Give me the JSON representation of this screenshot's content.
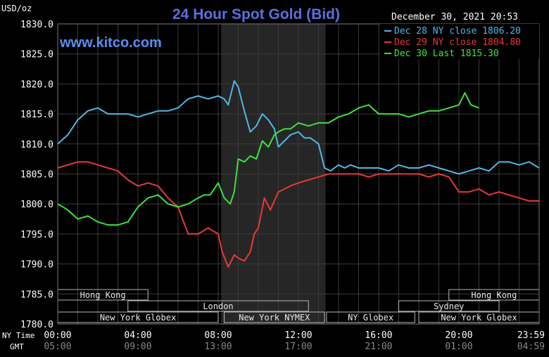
{
  "chart_data": {
    "type": "line",
    "title": "24 Hour Spot Gold (Bid)",
    "watermark": "www.kitco.com",
    "timestamp": "December 30, 2021 20:53",
    "ylabel": "USD/oz",
    "ylim": [
      1780,
      1830
    ],
    "yticks": [
      "1830.0",
      "1825.0",
      "1820.0",
      "1815.0",
      "1810.0",
      "1805.0",
      "1800.0",
      "1795.0",
      "1790.0",
      "1785.0",
      "1780.0"
    ],
    "xlim": [
      0,
      24
    ],
    "xticks_ny": [
      "00:00",
      "04:00",
      "08:00",
      "12:00",
      "16:00",
      "20:00",
      "23:59"
    ],
    "xticks_gmt": [
      "05:00",
      "09:00",
      "13:00",
      "17:00",
      "21:00",
      "01:00",
      "04:59"
    ],
    "xlabel_ny": "NY Time",
    "xlabel_gmt": "GMT",
    "grid": true,
    "legend_position": "top-right",
    "highlight_x": [
      8.15,
      13.35
    ],
    "sessions": [
      {
        "label": "Hong Kong",
        "start": 0,
        "end": 4.5,
        "row": 0
      },
      {
        "label": "Hong Kong",
        "start": 19.5,
        "end": 24,
        "row": 0
      },
      {
        "label": "London",
        "start": 3.5,
        "end": 12.5,
        "row": 1
      },
      {
        "label": "Sydney",
        "start": 17,
        "end": 22,
        "row": 1
      },
      {
        "label": "New York Globex",
        "start": 0,
        "end": 8.0,
        "row": 2
      },
      {
        "label": "New York NYMEX",
        "start": 8.3,
        "end": 13.3,
        "row": 2
      },
      {
        "label": "NY Globex",
        "start": 13.4,
        "end": 17.8,
        "row": 2
      },
      {
        "label": "New York Globex",
        "start": 18.0,
        "end": 24,
        "row": 2
      }
    ],
    "series": [
      {
        "name": "Dec 28 NY close 1806.20",
        "color": "#4fb8e6",
        "x": [
          0,
          0.5,
          1,
          1.5,
          2,
          2.5,
          3,
          3.5,
          4,
          4.5,
          5,
          5.5,
          6,
          6.5,
          7,
          7.5,
          8,
          8.3,
          8.5,
          8.8,
          9,
          9.3,
          9.6,
          9.9,
          10.2,
          10.5,
          10.8,
          11,
          11.3,
          11.6,
          12,
          12.3,
          12.6,
          13,
          13.3,
          13.6,
          14,
          14.3,
          14.6,
          15,
          15.5,
          16,
          16.5,
          17,
          17.5,
          18,
          18.5,
          19,
          19.5,
          20,
          20.5,
          21,
          21.5,
          22,
          22.5,
          23,
          23.5,
          24
        ],
        "values": [
          1810,
          1811.5,
          1814,
          1815.5,
          1816,
          1815,
          1815,
          1815,
          1814.5,
          1815,
          1815.5,
          1815.5,
          1816,
          1817.5,
          1818,
          1817.5,
          1818,
          1817.5,
          1816.5,
          1820.5,
          1819.5,
          1815.5,
          1812,
          1813,
          1815,
          1814,
          1812.5,
          1809.5,
          1810.5,
          1811.5,
          1812,
          1811,
          1811,
          1810,
          1806,
          1805.5,
          1806.5,
          1806,
          1806.5,
          1806,
          1806,
          1806,
          1805.5,
          1806.5,
          1806,
          1806,
          1806.5,
          1806,
          1805.5,
          1805,
          1805.5,
          1806,
          1805.5,
          1807,
          1807,
          1806.5,
          1807,
          1806
        ]
      },
      {
        "name": "Dec 29 NY close 1804.80",
        "color": "#e83838",
        "x": [
          0,
          0.5,
          1,
          1.5,
          2,
          2.5,
          3,
          3.5,
          4,
          4.5,
          5,
          5.5,
          6,
          6.5,
          7,
          7.5,
          8,
          8.2,
          8.5,
          8.8,
          9,
          9.3,
          9.6,
          9.8,
          10,
          10.3,
          10.6,
          11,
          11.3,
          11.6,
          12,
          12.5,
          13,
          13.5,
          14,
          14.5,
          15,
          15.5,
          16,
          16.5,
          17,
          17.5,
          18,
          18.5,
          19,
          19.5,
          20,
          20.5,
          21,
          21.5,
          22,
          22.5,
          23,
          23.5,
          24
        ],
        "values": [
          1806,
          1806.5,
          1807,
          1807,
          1806.5,
          1806,
          1805.5,
          1804,
          1803,
          1803.5,
          1803,
          1801,
          1799.5,
          1795,
          1795,
          1796,
          1795,
          1792,
          1789.5,
          1791.5,
          1791,
          1790.5,
          1792,
          1795,
          1796,
          1801,
          1799,
          1802,
          1802.5,
          1803,
          1803.5,
          1804,
          1804.5,
          1805,
          1805,
          1805,
          1805,
          1804.5,
          1805,
          1805,
          1805,
          1805,
          1805,
          1804.5,
          1805,
          1804.5,
          1802,
          1802,
          1802.5,
          1801.5,
          1802,
          1801.5,
          1801,
          1800.5,
          1800.5
        ]
      },
      {
        "name": "Dec 30 Last 1815.30",
        "color": "#3ee23e",
        "x": [
          0,
          0.5,
          1,
          1.5,
          2,
          2.5,
          3,
          3.5,
          4,
          4.5,
          5,
          5.5,
          6,
          6.5,
          7,
          7.3,
          7.6,
          8,
          8.3,
          8.6,
          8.8,
          9,
          9.3,
          9.6,
          9.9,
          10.2,
          10.5,
          10.8,
          11,
          11.3,
          11.6,
          12,
          12.5,
          13,
          13.5,
          14,
          14.5,
          15,
          15.5,
          16,
          16.5,
          17,
          17.5,
          18,
          18.5,
          19,
          19.5,
          20,
          20.3,
          20.6,
          21
        ],
        "values": [
          1800,
          1799,
          1797.5,
          1798,
          1797,
          1796.5,
          1796.5,
          1797,
          1799.5,
          1801,
          1801.5,
          1800,
          1799.5,
          1800,
          1801,
          1801.5,
          1801.5,
          1803.5,
          1801,
          1800,
          1802,
          1807.5,
          1807,
          1808,
          1807.5,
          1810.5,
          1809.5,
          1811.5,
          1812,
          1812.5,
          1812.5,
          1813.5,
          1813,
          1813.5,
          1813.5,
          1814.5,
          1815,
          1816,
          1816.5,
          1815,
          1815,
          1815,
          1814.5,
          1815,
          1815.5,
          1815.5,
          1816,
          1816.5,
          1818.5,
          1816.5,
          1816
        ]
      }
    ]
  }
}
